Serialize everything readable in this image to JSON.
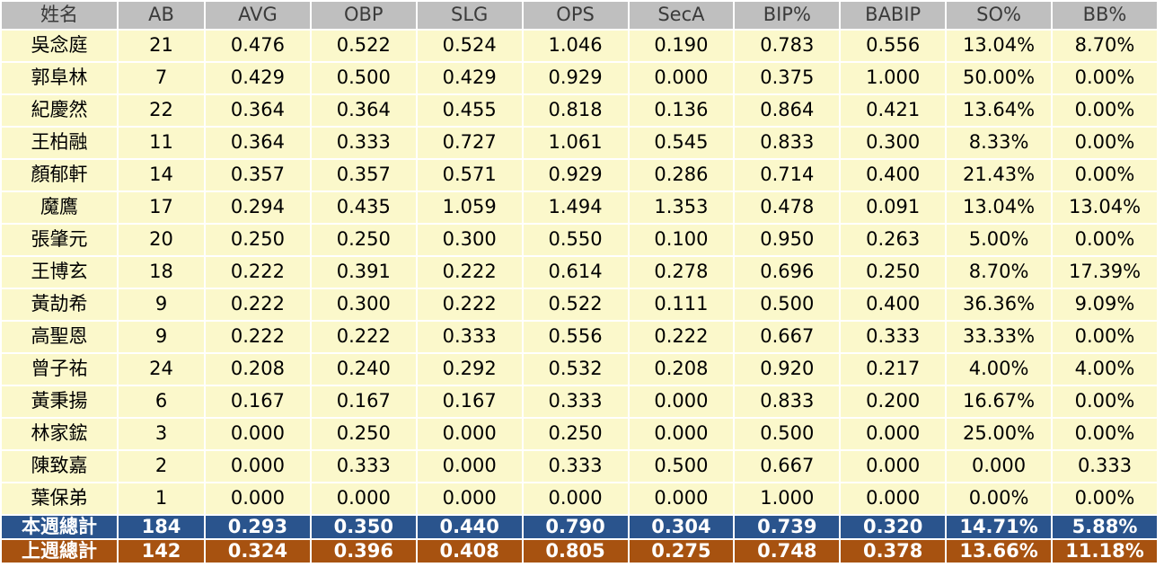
{
  "chart_data": {
    "type": "table",
    "title": "",
    "columns": [
      "姓名",
      "AB",
      "AVG",
      "OBP",
      "SLG",
      "OPS",
      "SecA",
      "BIP%",
      "BABIP",
      "SO%",
      "BB%"
    ],
    "rows": [
      {
        "name": "吳念庭",
        "values": [
          "21",
          "0.476",
          "0.522",
          "0.524",
          "1.046",
          "0.190",
          "0.783",
          "0.556",
          "13.04%",
          "8.70%"
        ]
      },
      {
        "name": "郭阜林",
        "values": [
          "7",
          "0.429",
          "0.500",
          "0.429",
          "0.929",
          "0.000",
          "0.375",
          "1.000",
          "50.00%",
          "0.00%"
        ]
      },
      {
        "name": "紀慶然",
        "values": [
          "22",
          "0.364",
          "0.364",
          "0.455",
          "0.818",
          "0.136",
          "0.864",
          "0.421",
          "13.64%",
          "0.00%"
        ]
      },
      {
        "name": "王柏融",
        "values": [
          "11",
          "0.364",
          "0.333",
          "0.727",
          "1.061",
          "0.545",
          "0.833",
          "0.300",
          "8.33%",
          "0.00%"
        ]
      },
      {
        "name": "顏郁軒",
        "values": [
          "14",
          "0.357",
          "0.357",
          "0.571",
          "0.929",
          "0.286",
          "0.714",
          "0.400",
          "21.43%",
          "0.00%"
        ]
      },
      {
        "name": "魔鷹",
        "values": [
          "17",
          "0.294",
          "0.435",
          "1.059",
          "1.494",
          "1.353",
          "0.478",
          "0.091",
          "13.04%",
          "13.04%"
        ]
      },
      {
        "name": "張肇元",
        "values": [
          "20",
          "0.250",
          "0.250",
          "0.300",
          "0.550",
          "0.100",
          "0.950",
          "0.263",
          "5.00%",
          "0.00%"
        ]
      },
      {
        "name": "王博玄",
        "values": [
          "18",
          "0.222",
          "0.391",
          "0.222",
          "0.614",
          "0.278",
          "0.696",
          "0.250",
          "8.70%",
          "17.39%"
        ]
      },
      {
        "name": "黃劼希",
        "values": [
          "9",
          "0.222",
          "0.300",
          "0.222",
          "0.522",
          "0.111",
          "0.500",
          "0.400",
          "36.36%",
          "9.09%"
        ]
      },
      {
        "name": "高聖恩",
        "values": [
          "9",
          "0.222",
          "0.222",
          "0.333",
          "0.556",
          "0.222",
          "0.667",
          "0.333",
          "33.33%",
          "0.00%"
        ]
      },
      {
        "name": "曾子祐",
        "values": [
          "24",
          "0.208",
          "0.240",
          "0.292",
          "0.532",
          "0.208",
          "0.920",
          "0.217",
          "4.00%",
          "4.00%"
        ]
      },
      {
        "name": "黃秉揚",
        "values": [
          "6",
          "0.167",
          "0.167",
          "0.167",
          "0.333",
          "0.000",
          "0.833",
          "0.200",
          "16.67%",
          "0.00%"
        ]
      },
      {
        "name": "林家鋐",
        "values": [
          "3",
          "0.000",
          "0.250",
          "0.000",
          "0.250",
          "0.000",
          "0.500",
          "0.000",
          "25.00%",
          "0.00%"
        ]
      },
      {
        "name": "陳致嘉",
        "values": [
          "2",
          "0.000",
          "0.333",
          "0.000",
          "0.333",
          "0.500",
          "0.667",
          "0.000",
          "0.000",
          "0.333"
        ]
      },
      {
        "name": "葉保弟",
        "values": [
          "1",
          "0.000",
          "0.000",
          "0.000",
          "0.000",
          "0.000",
          "1.000",
          "0.000",
          "0.00%",
          "0.00%"
        ]
      }
    ],
    "totals": [
      {
        "label": "本週總計",
        "type": "this_week",
        "values": [
          "184",
          "0.293",
          "0.350",
          "0.440",
          "0.790",
          "0.304",
          "0.739",
          "0.320",
          "14.71%",
          "5.88%"
        ]
      },
      {
        "label": "上週總計",
        "type": "last_week",
        "values": [
          "142",
          "0.324",
          "0.396",
          "0.408",
          "0.805",
          "0.275",
          "0.748",
          "0.378",
          "13.66%",
          "11.18%"
        ]
      }
    ]
  },
  "colors": {
    "header_bg": "#bfbfbf",
    "header_text": "#3b3b3b",
    "row_bg": "#fbf8cb",
    "row_text": "#000000",
    "grid": "#ffffff",
    "this_week_bg": "#2a548d",
    "last_week_bg": "#a75210",
    "totals_text": "#ffffff"
  }
}
